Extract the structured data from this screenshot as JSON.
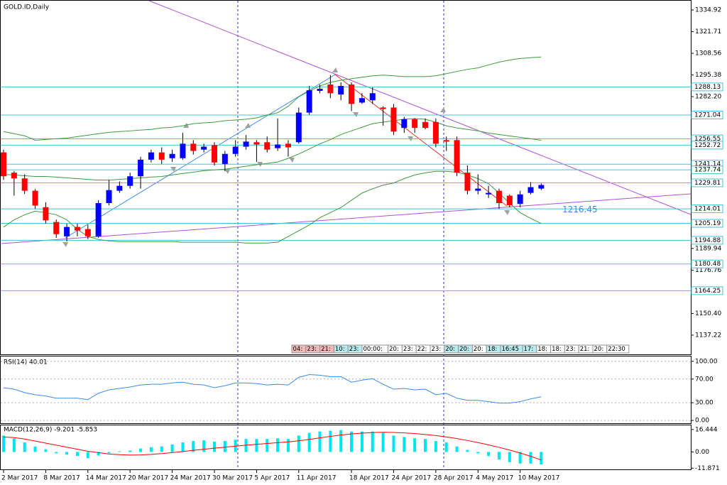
{
  "chart_data": [
    {
      "type": "candlestick",
      "title": "GOLD.ID,Daily",
      "categories": [
        "2 Mar 2017",
        null,
        null,
        null,
        "8 Mar 2017",
        null,
        null,
        null,
        "14 Mar 2017",
        null,
        null,
        null,
        "20 Mar 2017",
        null,
        null,
        null,
        "24 Mar 2017",
        null,
        null,
        null,
        "30 Mar 2017",
        null,
        null,
        null,
        "5 Apr 2017",
        null,
        null,
        null,
        "11 Apr 2017",
        null,
        null,
        null,
        null,
        "18 Apr 2017",
        null,
        null,
        null,
        "24 Apr 2017",
        null,
        null,
        null,
        "28 Apr 2017",
        null,
        null,
        null,
        "4 May 2017",
        null,
        null,
        null,
        "10 May 2017",
        null,
        null
      ],
      "open": [
        1248.3,
        1236,
        1232.5,
        1225,
        1215,
        1206,
        1197.3,
        1203,
        1201.7,
        1197.3,
        1217.5,
        1225,
        1228,
        1233.8,
        1243.9,
        1248.3,
        1244.8,
        1244.8,
        1253.6,
        1250,
        1252.7,
        1241.3,
        1247.4,
        1251.8,
        1254.5,
        1254.5,
        1250.9,
        1253.6,
        1254.5,
        1272.5,
        1285.7,
        1289.6,
        1283.5,
        1289.6,
        1278.6,
        1280,
        1275.6,
        1275.6,
        1263.2,
        1268.5,
        1266.8,
        1266.8,
        1255.8,
        1255.8,
        1236,
        1225,
        1222.8,
        1225,
        1222,
        1217,
        1223.7,
        1226.3
      ],
      "high": [
        1250,
        1237,
        1235,
        1226,
        1218,
        1207.5,
        1205,
        1205,
        1204.3,
        1219.3,
        1231.6,
        1230.7,
        1236,
        1245.7,
        1250,
        1251.4,
        1250,
        1260.2,
        1255.8,
        1253.6,
        1254.5,
        1249.2,
        1255.8,
        1258.9,
        1255.8,
        1258,
        1269,
        1255.8,
        1275.6,
        1288.7,
        1289.6,
        1295.3,
        1290.9,
        1290.9,
        1284.3,
        1287.9,
        1276.4,
        1277.8,
        1269.9,
        1269,
        1269,
        1269,
        1258,
        1258,
        1240.4,
        1235,
        1228,
        1226.3,
        1222.8,
        1225,
        1230.3,
        1229.4
      ],
      "low": [
        1231.6,
        1222,
        1223,
        1214,
        1205,
        1196.4,
        1194.2,
        1197.3,
        1195.6,
        1196.4,
        1216.2,
        1223.7,
        1226.3,
        1226.3,
        1242.2,
        1241.3,
        1242.6,
        1243.9,
        1247,
        1248.3,
        1240.4,
        1236.9,
        1245.7,
        1250,
        1242.6,
        1248.3,
        1249.2,
        1245.7,
        1253.6,
        1271.2,
        1284.3,
        1281.3,
        1280,
        1273.4,
        1277.8,
        1277.8,
        1264.6,
        1258.9,
        1260.2,
        1260.2,
        1262.4,
        1251.4,
        1249.2,
        1233.8,
        1222.8,
        1222.8,
        1220.6,
        1214,
        1214.9,
        1214.9,
        1222.8,
        1225.4
      ],
      "close": [
        1233.8,
        1232.5,
        1225,
        1216,
        1207,
        1198.6,
        1203,
        1200.8,
        1197.3,
        1217.5,
        1225.4,
        1228,
        1233.8,
        1243.9,
        1248.3,
        1243.9,
        1247.4,
        1253.6,
        1249.2,
        1251.8,
        1242.2,
        1247.4,
        1251.8,
        1254.9,
        1253.1,
        1250,
        1253.1,
        1251.4,
        1272.5,
        1286.1,
        1287,
        1284.3,
        1288.7,
        1277.8,
        1281.3,
        1284.3,
        1274.7,
        1261,
        1268.5,
        1263.2,
        1263.2,
        1253.6,
        1254.9,
        1236,
        1225,
        1226.3,
        1223.7,
        1217.5,
        1216.2,
        1222.8,
        1227.2,
        1228.5
      ],
      "up_color": "#0000ff",
      "down_color": "#ff0000",
      "bands": [
        {
          "color": "#3c9c3c",
          "values": [
            1261.0,
            1259.7,
            1258.4,
            1255.7,
            1256.2,
            1256.6,
            1257.0,
            1257.9,
            1258.8,
            1259.7,
            1260.5,
            1261.0,
            1261.4,
            1261.9,
            1262.3,
            1263.2,
            1263.6,
            1264.5,
            1265.8,
            1266.3,
            1266.7,
            1267.6,
            1268.0,
            1268.5,
            1269.3,
            1271.1,
            1272.4,
            1276.4,
            1282.1,
            1285.6,
            1288.7,
            1290.9,
            1292.2,
            1293.1,
            1294.0,
            1294.9,
            1295.3,
            1294.9,
            1294.4,
            1294.4,
            1294.4,
            1294.9,
            1296.2,
            1297.5,
            1298.8,
            1299.7,
            1301.5,
            1303.2,
            1304.5,
            1305.4,
            1305.9,
            1306.3
          ]
        },
        {
          "color": "#3c9c3c",
          "values": [
            1235.0,
            1234.6,
            1234.1,
            1233.7,
            1233.7,
            1233.3,
            1232.8,
            1232.4,
            1231.9,
            1231.5,
            1231.5,
            1231.9,
            1232.4,
            1232.8,
            1233.3,
            1233.7,
            1234.6,
            1235.5,
            1236.3,
            1237.2,
            1237.7,
            1238.1,
            1239.0,
            1239.9,
            1240.8,
            1241.6,
            1242.5,
            1244.7,
            1247.3,
            1250.4,
            1253.5,
            1256.1,
            1259.2,
            1261.4,
            1263.6,
            1265.8,
            1266.7,
            1267.6,
            1268.5,
            1268.9,
            1268.5,
            1266.7,
            1264.5,
            1263.2,
            1262.3,
            1261.4,
            1260.1,
            1259.2,
            1258.3,
            1257.5,
            1256.6,
            1255.7
          ]
        },
        {
          "color": "#3c9c3c",
          "values": [
            1202.9,
            1207.3,
            1210.4,
            1212.6,
            1211.7,
            1210.4,
            1207.3,
            1201.6,
            1197.2,
            1195.4,
            1194.5,
            1194.1,
            1194.1,
            1194.1,
            1194.1,
            1194.1,
            1194.1,
            1193.7,
            1193.7,
            1193.7,
            1193.7,
            1193.7,
            1193.7,
            1193.2,
            1193.2,
            1193.2,
            1193.7,
            1197.2,
            1200.7,
            1204.2,
            1208.6,
            1211.7,
            1214.8,
            1219.2,
            1223.6,
            1226.2,
            1228.4,
            1229.7,
            1232.4,
            1234.6,
            1235.9,
            1236.8,
            1236.8,
            1236.3,
            1234.6,
            1232.4,
            1229.3,
            1223.6,
            1217.4,
            1211.7,
            1208.2,
            1205.1
          ]
        }
      ],
      "levels": [
        1288.13,
        1271.04,
        1256.55,
        1252.72,
        1241.14,
        1237.74,
        1229.81,
        1214.01,
        1205.19,
        1194.88,
        1180.48,
        1164.25
      ],
      "level_color": "#46c3dc",
      "annotation": {
        "value": 1216.45,
        "label": "1216.45"
      },
      "ylim": [
        1125.11,
        1340.54
      ],
      "yticks": [
        1334.92,
        1321.71,
        1308.56,
        1295.38,
        {
          "value": 1282.2,
          "label": "1282.20"
        },
        1189.94,
        1176.76,
        {
          "value": 1150.4,
          "label": "1150.40"
        },
        1137.22
      ],
      "session_times": [
        {
          "text": "04:",
          "color": "#f4b8b8"
        },
        {
          "text": "23:",
          "color": "#f4b8b8"
        },
        {
          "text": "21:",
          "color": "#f4b8b8"
        },
        {
          "text": "10:",
          "color": "#b8ecf0"
        },
        {
          "text": "23:",
          "color": "#b8ecf0"
        },
        {
          "text": "00:00:",
          "color": "#ffffff"
        },
        {
          "text": "20:",
          "color": "#ffffff"
        },
        {
          "text": "23:",
          "color": "#ffffff"
        },
        {
          "text": "22:",
          "color": "#ffffff"
        },
        {
          "text": "23:",
          "color": "#ffffff"
        },
        {
          "text": "20:",
          "color": "#b8ecf0"
        },
        {
          "text": "20:",
          "color": "#b8ecf0"
        },
        {
          "text": "20:",
          "color": "#ffffff"
        },
        {
          "text": "18:",
          "color": "#b8ecf0"
        },
        {
          "text": "16:45",
          "color": "#b8ecf0"
        },
        {
          "text": "17:",
          "color": "#b8ecf0"
        },
        {
          "text": "18:",
          "color": "#ffffff"
        },
        {
          "text": "18:",
          "color": "#ffffff"
        },
        {
          "text": "23:",
          "color": "#ffffff"
        },
        {
          "text": "21:",
          "color": "#ffffff"
        },
        {
          "text": "20:",
          "color": "#ffffff"
        },
        {
          "text": "22:30",
          "color": "#ffffff"
        }
      ]
    },
    {
      "type": "line",
      "title": "RSI(14) 40.01",
      "color": "#3c8ce6",
      "values": [
        55.3,
        52.9,
        47.1,
        43.5,
        41.2,
        37.6,
        37.6,
        37.6,
        35.3,
        45.9,
        51.8,
        54.1,
        56.5,
        60,
        61.2,
        61.2,
        63.5,
        64.7,
        61.2,
        60,
        55.3,
        58.8,
        63.5,
        63.5,
        62.4,
        60,
        61.2,
        60,
        72.9,
        77.6,
        76.5,
        74.1,
        74.1,
        64.7,
        68.2,
        70.6,
        61.2,
        52.9,
        54.1,
        51.8,
        52.9,
        43.5,
        45.9,
        37.6,
        34.1,
        34.1,
        31.8,
        29.4,
        29.4,
        31.8,
        36.5,
        40.01
      ],
      "ylim": [
        -5.9,
        108.2
      ],
      "yticks": [
        {
          "value": 100,
          "label": "100.00"
        },
        {
          "value": 70,
          "label": "70.00"
        },
        {
          "value": 30,
          "label": "30.00"
        },
        {
          "value": 0,
          "label": "0.00"
        }
      ],
      "grid": true
    },
    {
      "type": "bar",
      "title": "MACD(12,26,9) -9.201 -5.853",
      "series": [
        {
          "kind": "bar",
          "color": "#00e5ee",
          "values": [
            12,
            10,
            7,
            4,
            2,
            -1,
            -2,
            -3,
            -4.6,
            -2.6,
            -1,
            0.5,
            1,
            2.5,
            3.5,
            4,
            5.5,
            7,
            8,
            8.5,
            7.5,
            8,
            9,
            9.5,
            9.5,
            9.5,
            10,
            9.5,
            12,
            14,
            15,
            15.5,
            16,
            15,
            15,
            15,
            14,
            12,
            11,
            10,
            9.5,
            8,
            7,
            4,
            1.5,
            -1,
            -3,
            -5.5,
            -7.5,
            -8.5,
            -8.5,
            -9.201
          ]
        },
        {
          "kind": "line",
          "color": "#ff0000",
          "values": [
            11,
            10.5,
            9.5,
            8,
            6.5,
            5,
            3.5,
            2,
            0.5,
            -0.5,
            -1.5,
            -2,
            -2.3,
            -2.2,
            -1.8,
            -1.2,
            -0.5,
            0.3,
            1.2,
            2,
            2.8,
            3.5,
            4.2,
            5,
            5.6,
            6.2,
            6.8,
            7.4,
            8.2,
            9.2,
            10.3,
            11.4,
            12.4,
            13.2,
            13.8,
            14.2,
            14.4,
            14.3,
            14,
            13.5,
            12.8,
            12,
            11,
            9.8,
            8.4,
            6.9,
            5.2,
            3.4,
            1.4,
            -0.8,
            -3.2,
            -5.853
          ]
        }
      ],
      "ylim": [
        -13.3,
        19.5
      ],
      "yticks": [
        16.444,
        {
          "value": 0,
          "label": "0.00"
        },
        -11.871
      ]
    }
  ]
}
